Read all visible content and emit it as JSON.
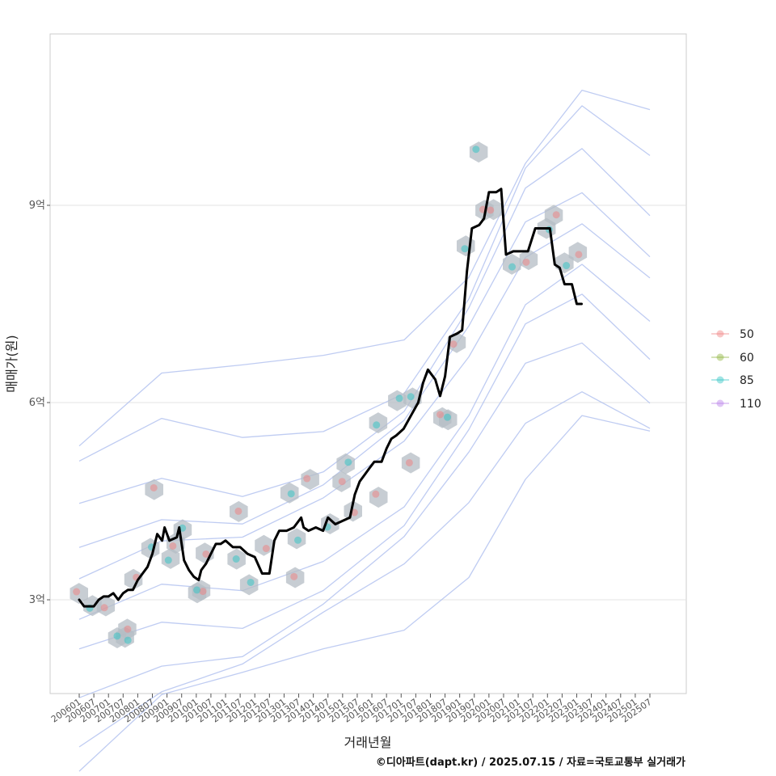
{
  "chart_data": {
    "type": "line",
    "xlabel": "거래년월",
    "ylabel": "매매가(원)",
    "caption": "©디아파트(dapt.kr) / 2025.07.15 / 자료=국토교통부 실거래가",
    "x_range": [
      "2006-01",
      "2025-07"
    ],
    "ylim_eok": [
      1.3,
      11.6
    ],
    "y_ticks": [
      {
        "label": "3억",
        "value": 3
      },
      {
        "label": "6억",
        "value": 6
      },
      {
        "label": "9억",
        "value": 9
      }
    ],
    "x_ticks": [
      "200601",
      "200607",
      "200701",
      "200707",
      "200801",
      "200807",
      "200901",
      "200907",
      "201001",
      "201007",
      "201101",
      "201107",
      "201201",
      "201207",
      "201301",
      "201307",
      "201401",
      "201407",
      "201501",
      "201507",
      "201601",
      "201607",
      "201701",
      "201707",
      "201801",
      "201807",
      "201901",
      "201907",
      "202001",
      "202007",
      "202101",
      "202107",
      "202201",
      "202207",
      "202301",
      "202307",
      "202401",
      "202407",
      "202501",
      "202507"
    ],
    "grid": "y-major",
    "legend": {
      "position": "right",
      "items": [
        {
          "label": "50",
          "color": "#f08080"
        },
        {
          "label": "60",
          "color": "#8db43c"
        },
        {
          "label": "85",
          "color": "#2ec4c4"
        },
        {
          "label": "110",
          "color": "#b87ee8"
        }
      ]
    },
    "line_series": {
      "color": "#000000",
      "points": [
        [
          "2006-01",
          3.0
        ],
        [
          "2006-03",
          2.9
        ],
        [
          "2006-07",
          2.9
        ],
        [
          "2006-09",
          3.0
        ],
        [
          "2006-11",
          3.05
        ],
        [
          "2007-01",
          3.05
        ],
        [
          "2007-03",
          3.1
        ],
        [
          "2007-05",
          3.0
        ],
        [
          "2007-07",
          3.1
        ],
        [
          "2007-09",
          3.15
        ],
        [
          "2007-11",
          3.15
        ],
        [
          "2008-01",
          3.3
        ],
        [
          "2008-03",
          3.4
        ],
        [
          "2008-05",
          3.5
        ],
        [
          "2008-07",
          3.7
        ],
        [
          "2008-09",
          4.0
        ],
        [
          "2008-11",
          3.9
        ],
        [
          "2008-12",
          4.1
        ],
        [
          "2009-02",
          3.9
        ],
        [
          "2009-05",
          3.95
        ],
        [
          "2009-06",
          4.1
        ],
        [
          "2009-08",
          3.6
        ],
        [
          "2009-10",
          3.45
        ],
        [
          "2009-12",
          3.35
        ],
        [
          "2010-02",
          3.3
        ],
        [
          "2010-03",
          3.45
        ],
        [
          "2010-05",
          3.55
        ],
        [
          "2010-07",
          3.7
        ],
        [
          "2010-09",
          3.85
        ],
        [
          "2010-11",
          3.85
        ],
        [
          "2011-01",
          3.9
        ],
        [
          "2011-04",
          3.8
        ],
        [
          "2011-07",
          3.8
        ],
        [
          "2011-10",
          3.7
        ],
        [
          "2012-01",
          3.65
        ],
        [
          "2012-04",
          3.4
        ],
        [
          "2012-07",
          3.4
        ],
        [
          "2012-09",
          3.9
        ],
        [
          "2012-11",
          4.05
        ],
        [
          "2013-02",
          4.05
        ],
        [
          "2013-05",
          4.1
        ],
        [
          "2013-08",
          4.25
        ],
        [
          "2013-09",
          4.1
        ],
        [
          "2013-11",
          4.05
        ],
        [
          "2014-02",
          4.1
        ],
        [
          "2014-05",
          4.05
        ],
        [
          "2014-07",
          4.25
        ],
        [
          "2014-10",
          4.15
        ],
        [
          "2015-01",
          4.2
        ],
        [
          "2015-04",
          4.25
        ],
        [
          "2015-06",
          4.6
        ],
        [
          "2015-08",
          4.8
        ],
        [
          "2015-10",
          4.9
        ],
        [
          "2015-12",
          5.0
        ],
        [
          "2016-02",
          5.1
        ],
        [
          "2016-05",
          5.1
        ],
        [
          "2016-07",
          5.3
        ],
        [
          "2016-09",
          5.45
        ],
        [
          "2016-11",
          5.5
        ],
        [
          "2017-02",
          5.6
        ],
        [
          "2017-05",
          5.8
        ],
        [
          "2017-08",
          6.0
        ],
        [
          "2017-10",
          6.3
        ],
        [
          "2017-12",
          6.5
        ],
        [
          "2018-03",
          6.35
        ],
        [
          "2018-05",
          6.1
        ],
        [
          "2018-07",
          6.4
        ],
        [
          "2018-09",
          7.0
        ],
        [
          "2018-12",
          7.05
        ],
        [
          "2019-02",
          7.1
        ],
        [
          "2019-04",
          8.0
        ],
        [
          "2019-06",
          8.65
        ],
        [
          "2019-09",
          8.7
        ],
        [
          "2019-11",
          8.8
        ],
        [
          "2020-01",
          9.2
        ],
        [
          "2020-04",
          9.2
        ],
        [
          "2020-06",
          9.25
        ],
        [
          "2020-08",
          8.25
        ],
        [
          "2020-11",
          8.3
        ],
        [
          "2021-02",
          8.3
        ],
        [
          "2021-05",
          8.3
        ],
        [
          "2021-08",
          8.65
        ],
        [
          "2021-11",
          8.65
        ],
        [
          "2022-02",
          8.65
        ],
        [
          "2022-04",
          8.1
        ],
        [
          "2022-06",
          8.05
        ],
        [
          "2022-08",
          7.8
        ],
        [
          "2022-11",
          7.8
        ],
        [
          "2023-01",
          7.5
        ],
        [
          "2023-03",
          7.5
        ]
      ]
    }
  }
}
